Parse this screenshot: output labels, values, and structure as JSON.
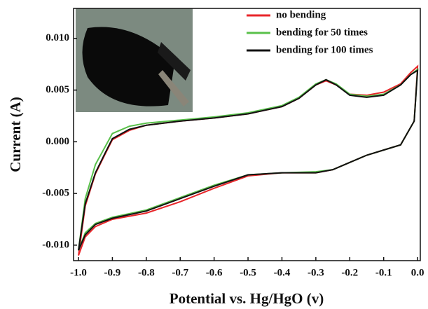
{
  "chart_data": {
    "type": "line",
    "x_label": "Potential vs. Hg/HgO (v)",
    "y_label": "Current (A)",
    "legend": "upper right",
    "xlim": [
      -1.0145,
      0.008
    ],
    "ylim": [
      -0.0115,
      0.0129
    ],
    "xticks": [
      {
        "value": -1,
        "label": "-1.0"
      },
      -0.9,
      -0.8,
      -0.7,
      -0.6,
      -0.5,
      -0.4,
      -0.3,
      -0.2,
      -0.1,
      {
        "value": 0,
        "label": "0.0"
      }
    ],
    "yticks": [
      {
        "value": -0.01,
        "label": "-0.010"
      },
      -0.005,
      {
        "value": 0,
        "label": "0.000"
      },
      0.005,
      {
        "value": 0.01,
        "label": "0.010"
      }
    ],
    "x": [
      -1.0,
      -0.98,
      -0.95,
      -0.92,
      -0.9,
      -0.85,
      -0.8,
      -0.7,
      -0.6,
      -0.5,
      -0.4,
      -0.35,
      -0.3,
      -0.27,
      -0.24,
      -0.2,
      -0.15,
      -0.1,
      -0.05,
      -0.02,
      0.0,
      -0.01,
      -0.05,
      -0.1,
      -0.15,
      -0.2,
      -0.25,
      -0.3,
      -0.4,
      -0.5,
      -0.6,
      -0.7,
      -0.8,
      -0.9,
      -0.95,
      -0.98,
      -1.0
    ],
    "series": [
      {
        "name": "no bending",
        "color": "#e8262a",
        "values": [
          -0.011,
          -0.0062,
          -0.0031,
          -0.0011,
          0.0002,
          0.0011,
          0.0016,
          0.002,
          0.0023,
          0.0027,
          0.0034,
          0.0042,
          0.0055,
          0.0059,
          0.0055,
          0.0046,
          0.0045,
          0.0048,
          0.0056,
          0.0067,
          0.0073,
          0.002,
          -0.0003,
          -0.0008,
          -0.0013,
          -0.002,
          -0.0027,
          -0.003,
          -0.003,
          -0.0033,
          -0.0045,
          -0.0058,
          -0.0069,
          -0.0075,
          -0.0082,
          -0.0092,
          -0.011
        ]
      },
      {
        "name": "bending for 50 times",
        "color": "#59c04a",
        "values": [
          -0.0105,
          -0.0055,
          -0.0022,
          -0.0004,
          0.0008,
          0.0015,
          0.0018,
          0.0021,
          0.0024,
          0.0028,
          0.0035,
          0.0043,
          0.0056,
          0.006,
          0.0056,
          0.0046,
          0.0044,
          0.0046,
          0.0055,
          0.0065,
          0.007,
          0.002,
          -0.0003,
          -0.0008,
          -0.0013,
          -0.002,
          -0.0027,
          -0.0029,
          -0.003,
          -0.0032,
          -0.0042,
          -0.0054,
          -0.0066,
          -0.0073,
          -0.0079,
          -0.0088,
          -0.0105
        ]
      },
      {
        "name": "bending for 100 times",
        "color": "#111111",
        "values": [
          -0.0105,
          -0.006,
          -0.003,
          -0.001,
          0.0003,
          0.0012,
          0.0016,
          0.002,
          0.0023,
          0.0027,
          0.0034,
          0.0042,
          0.0055,
          0.006,
          0.0055,
          0.0045,
          0.0043,
          0.0045,
          0.0055,
          0.0065,
          0.0069,
          0.002,
          -0.0003,
          -0.0008,
          -0.0013,
          -0.002,
          -0.0027,
          -0.003,
          -0.003,
          -0.0032,
          -0.0043,
          -0.0055,
          -0.0067,
          -0.0074,
          -0.008,
          -0.009,
          -0.0105
        ]
      }
    ]
  }
}
